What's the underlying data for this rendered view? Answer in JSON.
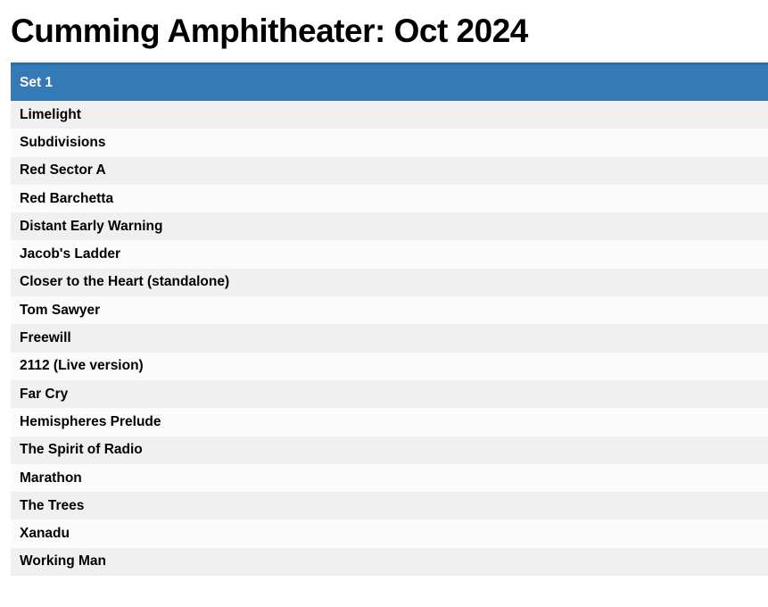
{
  "page": {
    "title": "Cumming Amphitheater: Oct 2024"
  },
  "setlist": {
    "header": "Set 1",
    "songs": [
      "Limelight",
      "Subdivisions",
      "Red Sector A",
      "Red Barchetta",
      "Distant Early Warning",
      "Jacob's Ladder",
      "Closer to the Heart (standalone)",
      "Tom Sawyer",
      "Freewill",
      "2112 (Live version)",
      "Far Cry",
      "Hemispheres Prelude",
      "The Spirit of Radio",
      "Marathon",
      "The Trees",
      "Xanadu",
      "Working Man"
    ]
  },
  "colors": {
    "header_bg": "#337ab7",
    "header_border": "#2e6da4",
    "header_text": "#ffffff",
    "row_light": "#fbfbfb",
    "row_dark": "#f0f0f0",
    "text": "#000000",
    "page_bg": "#ffffff"
  }
}
